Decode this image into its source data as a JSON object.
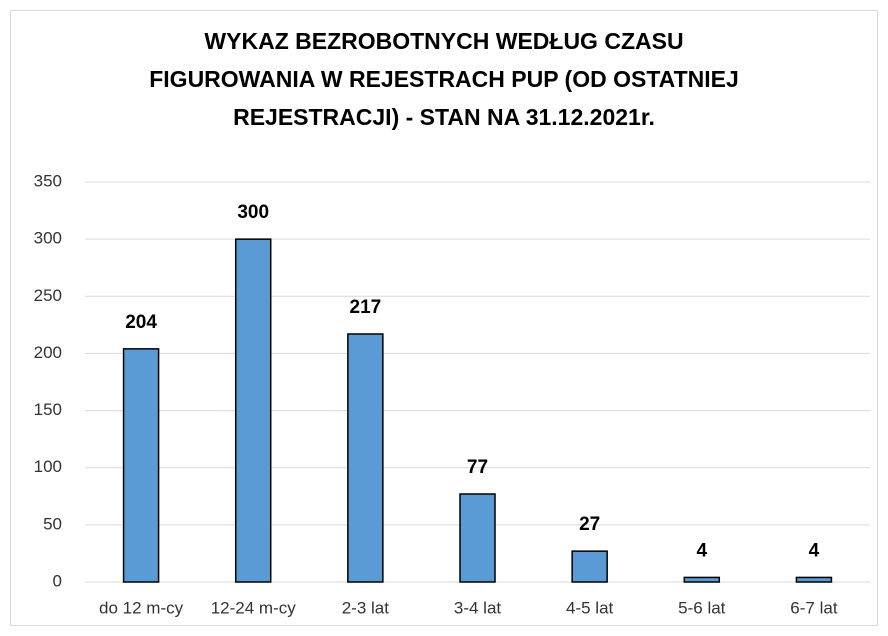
{
  "chart_data": {
    "type": "bar",
    "title": "WYKAZ BEZROBOTNYCH WEDŁUG CZASU FIGUROWANIA W REJESTRACH PUP (OD OSTATNIEJ REJESTRACJI) - STAN NA 31.12.2021r.",
    "categories": [
      "do 12 m-cy",
      "12-24 m-cy",
      "2-3 lat",
      "3-4 lat",
      "4-5 lat",
      "5-6 lat",
      "6-7 lat"
    ],
    "values": [
      204,
      300,
      217,
      77,
      27,
      4,
      4
    ],
    "color": "#5b9bd5",
    "ylim": [
      0,
      350
    ],
    "yticks": [
      0,
      50,
      100,
      150,
      200,
      250,
      300,
      350
    ],
    "grid": true
  }
}
